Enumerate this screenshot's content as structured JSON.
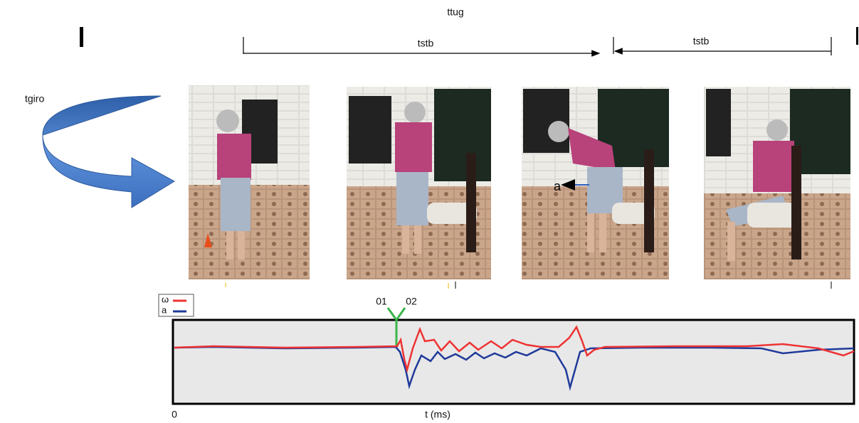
{
  "title": "ttug",
  "brackets": [
    "tstb",
    "tstb"
  ],
  "turn_label": "tgiro",
  "photo_annotation": "a",
  "signal": {
    "legend": [
      "ω",
      "a"
    ],
    "markers": [
      "01",
      "02"
    ],
    "x_origin": 0,
    "x_label": "t (ms)"
  }
}
